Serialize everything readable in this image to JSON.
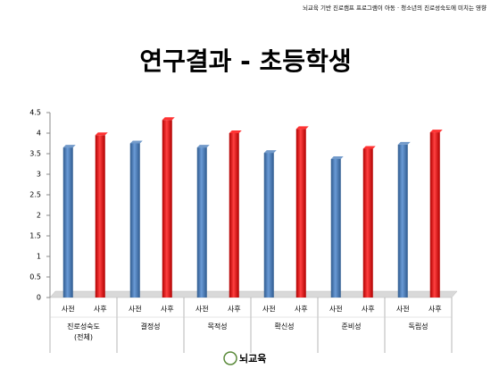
{
  "header": {
    "subtitle": "뇌교육 기반 진로캠프 프로그램이 아동 · 청소년의 진로성숙도에 미치는 영향"
  },
  "chart_data": {
    "type": "bar",
    "title": "연구결과 - 초등학생",
    "categories": [
      "진로성숙도\n(전체)",
      "결정성",
      "목적성",
      "확신성",
      "준비성",
      "독립성"
    ],
    "series": [
      {
        "name": "사전",
        "color": "#4f81bd",
        "values": [
          3.65,
          3.75,
          3.65,
          3.52,
          3.37,
          3.72
        ]
      },
      {
        "name": "사후",
        "color": "#ff0000",
        "values": [
          3.95,
          4.32,
          4.0,
          4.1,
          3.62,
          4.02
        ]
      }
    ],
    "ylim": [
      0,
      4.5
    ],
    "yticks": [
      0,
      0.5,
      1,
      1.5,
      2,
      2.5,
      3,
      3.5,
      4,
      4.5
    ],
    "grid": false
  },
  "footer": {
    "logo": "뇌교육"
  }
}
